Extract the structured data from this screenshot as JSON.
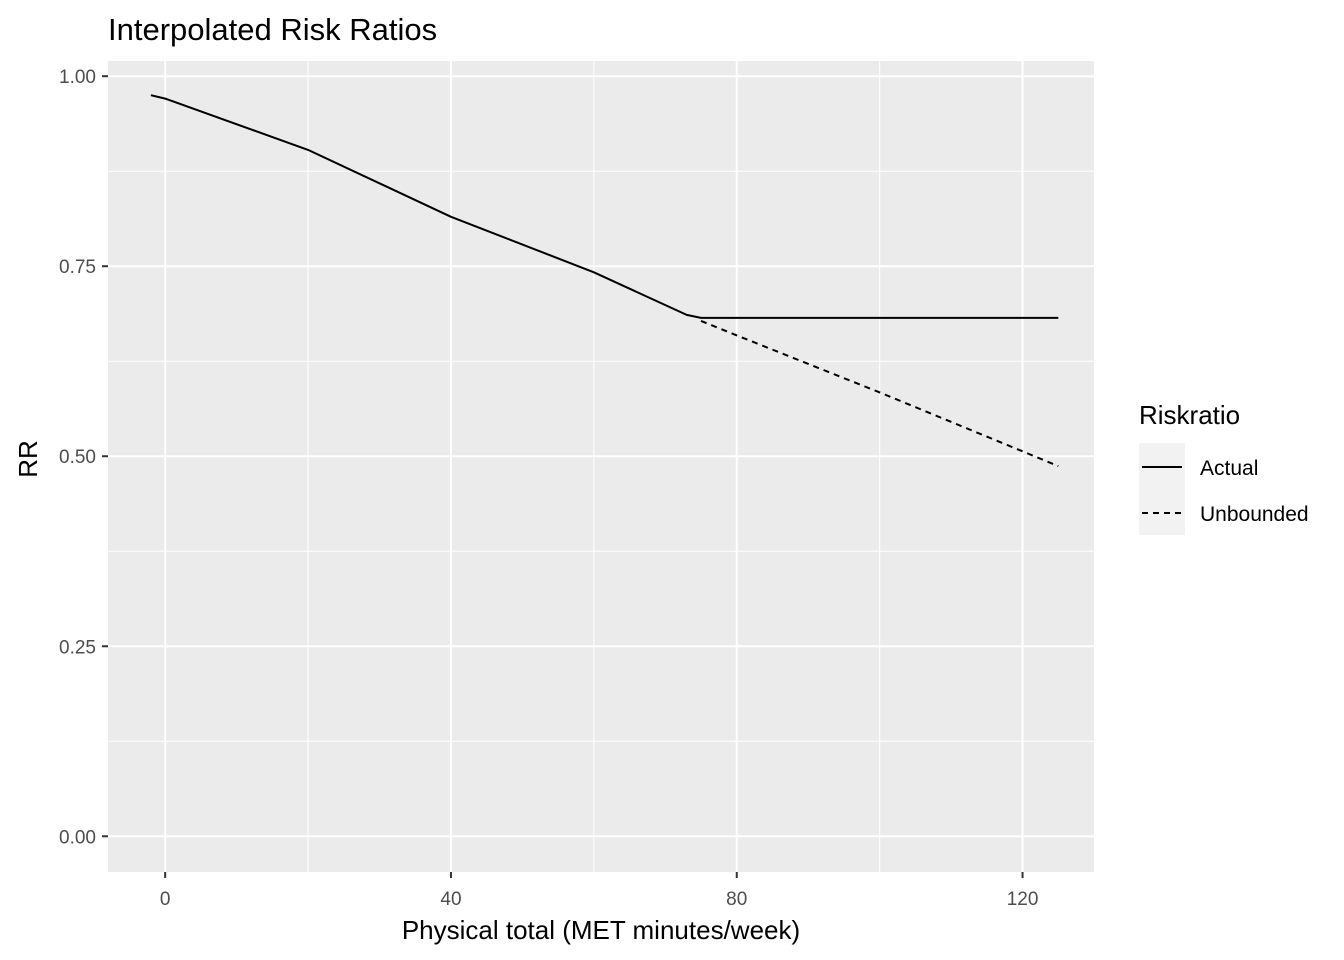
{
  "chart_data": {
    "type": "line",
    "title": "Interpolated Risk Ratios",
    "xlabel": "Physical total (MET minutes/week)",
    "ylabel": "RR",
    "xlim": [
      -8,
      130
    ],
    "ylim": [
      -0.047,
      1.02
    ],
    "x_ticks": [
      0,
      40,
      80,
      120
    ],
    "x_tick_labels": [
      "0",
      "40",
      "80",
      "120"
    ],
    "x_minor_ticks": [
      20,
      60,
      100
    ],
    "y_ticks": [
      0,
      0.25,
      0.5,
      0.75,
      1.0
    ],
    "y_tick_labels": [
      "0.00",
      "0.25",
      "0.50",
      "0.75",
      "1.00"
    ],
    "y_minor_ticks": [
      0.125,
      0.375,
      0.625,
      0.875
    ],
    "grid": true,
    "legend": {
      "title": "Riskratio",
      "position": "right",
      "entries": [
        "Actual",
        "Unbounded"
      ]
    },
    "series": [
      {
        "name": "Actual",
        "line_style": "solid",
        "color": "#000000",
        "points": [
          [
            -2,
            0.975
          ],
          [
            0,
            0.9705
          ],
          [
            20,
            0.903
          ],
          [
            40,
            0.815
          ],
          [
            60,
            0.742
          ],
          [
            73,
            0.686
          ],
          [
            75,
            0.682
          ],
          [
            125,
            0.682
          ]
        ]
      },
      {
        "name": "Unbounded",
        "line_style": "dashed",
        "color": "#000000",
        "points": [
          [
            75,
            0.678
          ],
          [
            80,
            0.659
          ],
          [
            100,
            0.584
          ],
          [
            125,
            0.487
          ]
        ]
      }
    ],
    "panel_color": "#ebebeb",
    "grid_color": "#ffffff"
  }
}
